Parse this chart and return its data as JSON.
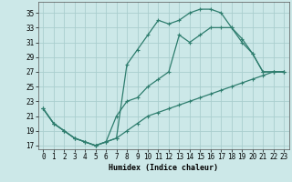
{
  "xlabel": "Humidex (Indice chaleur)",
  "xlim": [
    -0.5,
    23.5
  ],
  "ylim": [
    16.5,
    36.5
  ],
  "xticks": [
    0,
    1,
    2,
    3,
    4,
    5,
    6,
    7,
    8,
    9,
    10,
    11,
    12,
    13,
    14,
    15,
    16,
    17,
    18,
    19,
    20,
    21,
    22,
    23
  ],
  "yticks": [
    17,
    19,
    21,
    23,
    25,
    27,
    29,
    31,
    33,
    35
  ],
  "bg_color": "#cce8e8",
  "grid_color": "#aacece",
  "line_color": "#2e7d6e",
  "line1_x": [
    0,
    1,
    2,
    3,
    4,
    5,
    6,
    7,
    8,
    9,
    10,
    11,
    12,
    13,
    14,
    15,
    16,
    17,
    18,
    19,
    20,
    21,
    22,
    23
  ],
  "line1_y": [
    22,
    20,
    19,
    18,
    17.5,
    17,
    17.5,
    18,
    28,
    30,
    32,
    34,
    33.5,
    34,
    35,
    35.5,
    35.5,
    35,
    33,
    31.5,
    29.5,
    27,
    27,
    27
  ],
  "line2_x": [
    0,
    1,
    2,
    3,
    4,
    5,
    6,
    7,
    8,
    9,
    10,
    11,
    12,
    13,
    14,
    15,
    16,
    17,
    18,
    19,
    20,
    21,
    22,
    23
  ],
  "line2_y": [
    22,
    20,
    19,
    18,
    17.5,
    17,
    17.5,
    21,
    23,
    23.5,
    25,
    26,
    27,
    32,
    31,
    32,
    33,
    33,
    33,
    31,
    29.5,
    27,
    27,
    27
  ],
  "line3_x": [
    0,
    1,
    2,
    3,
    4,
    5,
    6,
    7,
    8,
    9,
    10,
    11,
    12,
    13,
    14,
    15,
    16,
    17,
    18,
    19,
    20,
    21,
    22,
    23
  ],
  "line3_y": [
    22,
    20,
    19,
    18,
    17.5,
    17,
    17.5,
    18,
    19,
    20,
    21,
    21.5,
    22,
    22.5,
    23,
    23.5,
    24,
    24.5,
    25,
    25.5,
    26,
    26.5,
    27,
    27
  ],
  "xlabel_fontsize": 6,
  "tick_fontsize": 5.5,
  "linewidth": 0.9,
  "markersize": 3.5
}
